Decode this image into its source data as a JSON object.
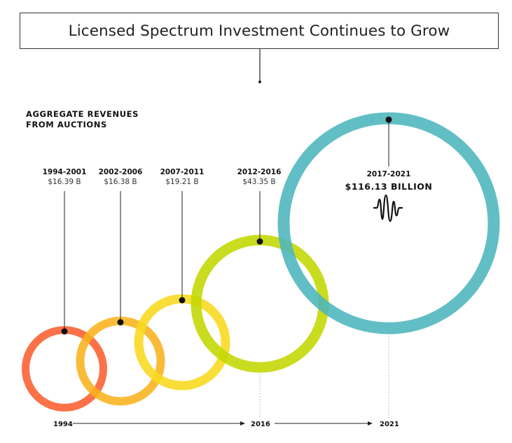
{
  "title": "Licensed Spectrum Investment Continues to Grow",
  "subtitle_line1": "AGGREGATE REVENUES",
  "subtitle_line2": "FROM AUCTIONS",
  "chart_data": {
    "type": "bubble",
    "title": "Licensed Spectrum Investment Continues to Grow",
    "subtitle": "AGGREGATE REVENUES FROM AUCTIONS",
    "unit": "billion USD",
    "categories": [
      "1994-2001",
      "2002-2006",
      "2007-2011",
      "2012-2016",
      "2017-2021"
    ],
    "values": [
      16.39,
      16.38,
      19.21,
      43.35,
      116.13
    ],
    "value_labels": [
      "$16.39 B",
      "$16.38 B",
      "$19.21 B",
      "$43.35 B",
      "$116.13 BILLION"
    ],
    "colors": [
      "#fa5e30",
      "#f9b31d",
      "#f8da1f",
      "#c3d700",
      "#4cb5bd"
    ],
    "timeline": [
      "1994",
      "2016",
      "2021"
    ]
  },
  "icons": {
    "highlight": "sound-wave-icon"
  }
}
